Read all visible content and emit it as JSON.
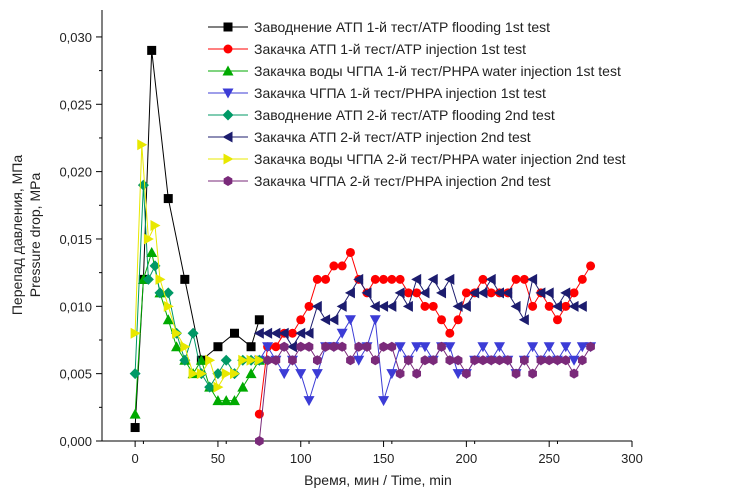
{
  "chart_data": {
    "type": "line",
    "xlabel": "Время, мин / Time, min",
    "ylabel_lines": [
      "Перепад давления, МПа",
      "Pressure drop, MPa"
    ],
    "xlim": [
      -20,
      300
    ],
    "ylim": [
      0,
      0.032
    ],
    "xticks": [
      0,
      50,
      100,
      150,
      200,
      250,
      300
    ],
    "yticks": [
      0,
      0.005,
      0.01,
      0.015,
      0.02,
      0.025,
      0.03
    ],
    "xtick_labels": [
      "0",
      "50",
      "100",
      "150",
      "200",
      "250",
      "300"
    ],
    "ytick_labels": [
      "0,000",
      "0,005",
      "0,010",
      "0,015",
      "0,020",
      "0,025",
      "0,030"
    ],
    "legend_position": "top-right",
    "series": [
      {
        "name": "Заводнение АТП 1-й тест/ATP flooding 1st test",
        "color": "#000000",
        "marker": "square",
        "points": [
          [
            0,
            0.001
          ],
          [
            5,
            0.012
          ],
          [
            10,
            0.029
          ],
          [
            20,
            0.018
          ],
          [
            30,
            0.012
          ],
          [
            40,
            0.006
          ],
          [
            50,
            0.007
          ],
          [
            60,
            0.008
          ],
          [
            70,
            0.007
          ],
          [
            75,
            0.009
          ]
        ]
      },
      {
        "name": "Закачка АТП 1-й тест/ATP injection 1st test",
        "color": "#ff0000",
        "marker": "circle",
        "points": [
          [
            75,
            0.002
          ],
          [
            80,
            0.007
          ],
          [
            85,
            0.007
          ],
          [
            90,
            0.008
          ],
          [
            95,
            0.008
          ],
          [
            100,
            0.009
          ],
          [
            105,
            0.01
          ],
          [
            110,
            0.012
          ],
          [
            115,
            0.012
          ],
          [
            120,
            0.013
          ],
          [
            125,
            0.013
          ],
          [
            130,
            0.014
          ],
          [
            135,
            0.012
          ],
          [
            140,
            0.011
          ],
          [
            145,
            0.012
          ],
          [
            150,
            0.012
          ],
          [
            155,
            0.012
          ],
          [
            160,
            0.012
          ],
          [
            165,
            0.011
          ],
          [
            170,
            0.011
          ],
          [
            175,
            0.01
          ],
          [
            180,
            0.01
          ],
          [
            185,
            0.009
          ],
          [
            190,
            0.008
          ],
          [
            195,
            0.009
          ],
          [
            200,
            0.011
          ],
          [
            205,
            0.011
          ],
          [
            210,
            0.012
          ],
          [
            215,
            0.011
          ],
          [
            220,
            0.011
          ],
          [
            225,
            0.011
          ],
          [
            230,
            0.012
          ],
          [
            235,
            0.012
          ],
          [
            240,
            0.01
          ],
          [
            245,
            0.011
          ],
          [
            250,
            0.01
          ],
          [
            255,
            0.009
          ],
          [
            260,
            0.01
          ],
          [
            265,
            0.011
          ],
          [
            270,
            0.012
          ],
          [
            275,
            0.013
          ]
        ]
      },
      {
        "name": "Закачка воды ЧГПА 1-й тест/PHPA water injection 1st test",
        "color": "#00aa00",
        "marker": "triangle-up",
        "points": [
          [
            0,
            0.002
          ],
          [
            5,
            0.012
          ],
          [
            10,
            0.014
          ],
          [
            15,
            0.011
          ],
          [
            20,
            0.009
          ],
          [
            25,
            0.007
          ],
          [
            30,
            0.006
          ],
          [
            35,
            0.005
          ],
          [
            40,
            0.006
          ],
          [
            45,
            0.004
          ],
          [
            50,
            0.003
          ],
          [
            55,
            0.003
          ],
          [
            60,
            0.003
          ],
          [
            65,
            0.004
          ],
          [
            70,
            0.005
          ],
          [
            75,
            0.006
          ]
        ]
      },
      {
        "name": "Закачка ЧГПА 1-й тест/PHPA injection 1st test",
        "color": "#3c3cd6",
        "marker": "triangle-down",
        "points": [
          [
            75,
            0.006
          ],
          [
            80,
            0.007
          ],
          [
            85,
            0.006
          ],
          [
            90,
            0.005
          ],
          [
            95,
            0.006
          ],
          [
            100,
            0.005
          ],
          [
            105,
            0.003
          ],
          [
            110,
            0.005
          ],
          [
            115,
            0.007
          ],
          [
            120,
            0.007
          ],
          [
            125,
            0.008
          ],
          [
            130,
            0.009
          ],
          [
            135,
            0.006
          ],
          [
            140,
            0.007
          ],
          [
            145,
            0.009
          ],
          [
            150,
            0.003
          ],
          [
            155,
            0.005
          ],
          [
            160,
            0.007
          ],
          [
            165,
            0.006
          ],
          [
            170,
            0.007
          ],
          [
            175,
            0.007
          ],
          [
            180,
            0.006
          ],
          [
            185,
            0.007
          ],
          [
            190,
            0.007
          ],
          [
            195,
            0.005
          ],
          [
            200,
            0.005
          ],
          [
            205,
            0.006
          ],
          [
            210,
            0.007
          ],
          [
            215,
            0.006
          ],
          [
            220,
            0.007
          ],
          [
            225,
            0.006
          ],
          [
            230,
            0.005
          ],
          [
            235,
            0.006
          ],
          [
            240,
            0.007
          ],
          [
            245,
            0.006
          ],
          [
            250,
            0.007
          ],
          [
            255,
            0.006
          ],
          [
            260,
            0.007
          ],
          [
            265,
            0.006
          ],
          [
            270,
            0.007
          ],
          [
            275,
            0.007
          ]
        ]
      },
      {
        "name": "Заводнение АТП 2-й тест/ATP flooding 2nd test",
        "color": "#009966",
        "marker": "diamond",
        "points": [
          [
            0,
            0.005
          ],
          [
            5,
            0.019
          ],
          [
            8,
            0.012
          ],
          [
            12,
            0.013
          ],
          [
            15,
            0.011
          ],
          [
            20,
            0.011
          ],
          [
            25,
            0.008
          ],
          [
            30,
            0.006
          ],
          [
            35,
            0.008
          ],
          [
            40,
            0.005
          ],
          [
            45,
            0.004
          ],
          [
            50,
            0.005
          ],
          [
            55,
            0.006
          ],
          [
            60,
            0.005
          ],
          [
            65,
            0.006
          ],
          [
            70,
            0.006
          ],
          [
            75,
            0.006
          ]
        ]
      },
      {
        "name": "Закачка АТП 2-й тест/ATP injection 2nd test",
        "color": "#1c1c6e",
        "marker": "triangle-left",
        "points": [
          [
            75,
            0.008
          ],
          [
            80,
            0.008
          ],
          [
            85,
            0.008
          ],
          [
            90,
            0.008
          ],
          [
            95,
            0.007
          ],
          [
            100,
            0.008
          ],
          [
            105,
            0.008
          ],
          [
            110,
            0.01
          ],
          [
            115,
            0.009
          ],
          [
            120,
            0.009
          ],
          [
            125,
            0.01
          ],
          [
            130,
            0.011
          ],
          [
            135,
            0.012
          ],
          [
            140,
            0.011
          ],
          [
            145,
            0.01
          ],
          [
            150,
            0.01
          ],
          [
            155,
            0.01
          ],
          [
            160,
            0.011
          ],
          [
            165,
            0.01
          ],
          [
            170,
            0.012
          ],
          [
            175,
            0.011
          ],
          [
            180,
            0.012
          ],
          [
            185,
            0.011
          ],
          [
            190,
            0.012
          ],
          [
            195,
            0.01
          ],
          [
            200,
            0.01
          ],
          [
            205,
            0.011
          ],
          [
            210,
            0.011
          ],
          [
            215,
            0.012
          ],
          [
            220,
            0.011
          ],
          [
            225,
            0.011
          ],
          [
            230,
            0.01
          ],
          [
            235,
            0.009
          ],
          [
            240,
            0.012
          ],
          [
            245,
            0.011
          ],
          [
            250,
            0.011
          ],
          [
            255,
            0.01
          ],
          [
            260,
            0.011
          ],
          [
            265,
            0.01
          ],
          [
            270,
            0.01
          ]
        ]
      },
      {
        "name": "Закачка воды ЧГПА 2-й тест/PHPA water injection 2nd test",
        "color": "#e8e800",
        "marker": "triangle-right",
        "points": [
          [
            0,
            0.008
          ],
          [
            4,
            0.022
          ],
          [
            8,
            0.015
          ],
          [
            12,
            0.016
          ],
          [
            15,
            0.012
          ],
          [
            20,
            0.01
          ],
          [
            25,
            0.008
          ],
          [
            30,
            0.007
          ],
          [
            35,
            0.005
          ],
          [
            40,
            0.005
          ],
          [
            45,
            0.006
          ],
          [
            50,
            0.004
          ],
          [
            55,
            0.005
          ],
          [
            60,
            0.005
          ],
          [
            65,
            0.006
          ],
          [
            70,
            0.006
          ],
          [
            75,
            0.006
          ]
        ]
      },
      {
        "name": "Закачка ЧГПА 2-й тест/PHPA injection 2nd test",
        "color": "#7a2a7a",
        "marker": "hexagon",
        "points": [
          [
            75,
            0
          ],
          [
            80,
            0.006
          ],
          [
            85,
            0.006
          ],
          [
            90,
            0.007
          ],
          [
            95,
            0.006
          ],
          [
            100,
            0.007
          ],
          [
            105,
            0.007
          ],
          [
            110,
            0.006
          ],
          [
            115,
            0.007
          ],
          [
            120,
            0.007
          ],
          [
            125,
            0.007
          ],
          [
            130,
            0.006
          ],
          [
            135,
            0.007
          ],
          [
            140,
            0.007
          ],
          [
            145,
            0.006
          ],
          [
            150,
            0.007
          ],
          [
            155,
            0.007
          ],
          [
            160,
            0.005
          ],
          [
            165,
            0.006
          ],
          [
            170,
            0.005
          ],
          [
            175,
            0.006
          ],
          [
            180,
            0.006
          ],
          [
            185,
            0.007
          ],
          [
            190,
            0.006
          ],
          [
            195,
            0.006
          ],
          [
            200,
            0.005
          ],
          [
            205,
            0.006
          ],
          [
            210,
            0.006
          ],
          [
            215,
            0.006
          ],
          [
            220,
            0.006
          ],
          [
            225,
            0.006
          ],
          [
            230,
            0.005
          ],
          [
            235,
            0.006
          ],
          [
            240,
            0.005
          ],
          [
            245,
            0.006
          ],
          [
            250,
            0.006
          ],
          [
            255,
            0.006
          ],
          [
            260,
            0.006
          ],
          [
            265,
            0.005
          ],
          [
            270,
            0.006
          ],
          [
            275,
            0.007
          ]
        ]
      }
    ]
  }
}
